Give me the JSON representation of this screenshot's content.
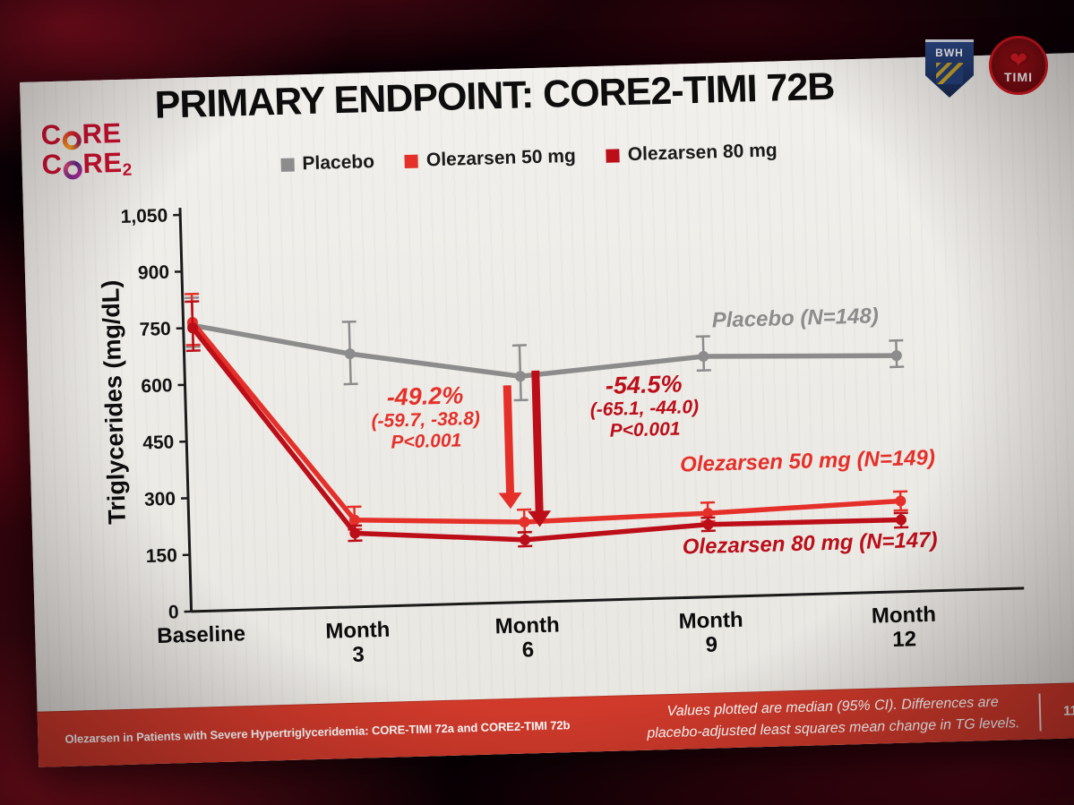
{
  "colors": {
    "placebo": "#8c8c8c",
    "olz50": "#e5302a",
    "olz80": "#bb0e18",
    "footer_bg": "#d13a2b"
  },
  "logos": {
    "core_l1a": "C",
    "core_l1b": "RE",
    "core_l2a": "C",
    "core_l2b": "RE",
    "core_sub": "2",
    "bwh": "BWH",
    "timi": "TIMI",
    "timi_heart": "❤"
  },
  "slide": {
    "title": "PRIMARY ENDPOINT: CORE2-TIMI 72B"
  },
  "legend": [
    {
      "label": "Placebo",
      "color": "#8c8c8c"
    },
    {
      "label": "Olezarsen 50 mg",
      "color": "#e5302a"
    },
    {
      "label": "Olezarsen 80 mg",
      "color": "#bb0e18"
    }
  ],
  "chart_data": {
    "type": "line",
    "title": "PRIMARY ENDPOINT: CORE2-TIMI 72B",
    "xlabel": "",
    "ylabel": "Triglycerides (mg/dL)",
    "ylim": [
      0,
      1050
    ],
    "yticks": [
      0,
      150,
      300,
      450,
      600,
      750,
      900,
      1050
    ],
    "ytick_labels": [
      "0",
      "150",
      "300",
      "450",
      "600",
      "750",
      "900",
      "1,050"
    ],
    "categories": [
      "Baseline",
      "Month 3",
      "Month 6",
      "Month 9",
      "Month 12"
    ],
    "xtick_labels": [
      [
        "Baseline"
      ],
      [
        "Month",
        "3"
      ],
      [
        "Month",
        "6"
      ],
      [
        "Month",
        "9"
      ],
      [
        "Month",
        "12"
      ]
    ],
    "grid": false,
    "legend_position": "top",
    "series": [
      {
        "name": "Placebo (N=148)",
        "color": "#8c8c8c",
        "values": [
          757,
          670,
          598,
          637,
          625
        ],
        "ci_low": [
          700,
          590,
          535,
          600,
          595
        ],
        "ci_high": [
          830,
          755,
          680,
          690,
          665
        ]
      },
      {
        "name": "Olezarsen 50 mg (N=149)",
        "color": "#e5302a",
        "values": [
          765,
          230,
          212,
          222,
          240
        ],
        "ci_low": [
          705,
          205,
          185,
          200,
          215
        ],
        "ci_high": [
          840,
          265,
          245,
          250,
          265
        ]
      },
      {
        "name": "Olezarsen 80 mg (N=147)",
        "color": "#bb0e18",
        "values": [
          750,
          195,
          165,
          192,
          190
        ],
        "ci_low": [
          690,
          175,
          148,
          175,
          170
        ],
        "ci_high": [
          820,
          215,
          185,
          210,
          208
        ]
      }
    ],
    "annotations": [
      {
        "pct": "-49.2%",
        "ci": "(-59.7, -38.8)",
        "p": "P<0.001",
        "color": "#e5302a"
      },
      {
        "pct": "-54.5%",
        "ci": "(-65.1, -44.0)",
        "p": "P<0.001",
        "color": "#bb0e18"
      }
    ]
  },
  "footer": {
    "left": "Olezarsen in Patients with Severe Hypertriglyceridemia: CORE-TIMI 72a and CORE2-TIMI 72b",
    "right_line1": "Values plotted are median (95% CI). Differences are",
    "right_line2": "placebo-adjusted least squares mean change in TG levels.",
    "page": "11"
  }
}
